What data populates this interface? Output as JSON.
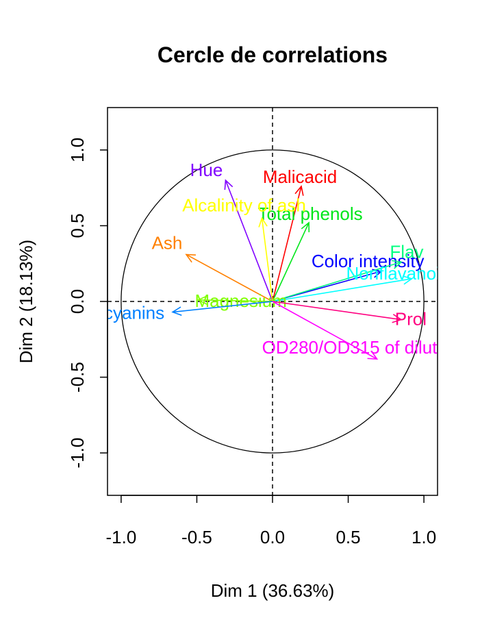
{
  "chart_data": {
    "type": "scatter",
    "title": "Cercle de correlations",
    "xlabel": "Dim 1 (36.63%)",
    "ylabel": "Dim 2 (18.13%)",
    "xlim": [
      -1.09,
      1.09
    ],
    "ylim": [
      -1.28,
      1.28
    ],
    "xticks": [
      -1.0,
      -0.5,
      0.0,
      0.5,
      1.0
    ],
    "yticks": [
      -1.0,
      -0.5,
      0.0,
      0.5,
      1.0
    ],
    "xtick_labels": [
      "-1.0",
      "-0.5",
      "0.0",
      "0.5",
      "1.0"
    ],
    "ytick_labels": [
      "-1.0",
      "-0.5",
      "0.0",
      "0.5",
      "1.0"
    ],
    "unit_circle": true,
    "reference_lines": [
      0,
      0
    ],
    "series": [
      {
        "name": "Malicacid",
        "x": 0.19,
        "y": 0.76,
        "color": "#ff0000"
      },
      {
        "name": "Total phenols",
        "x": 0.24,
        "y": 0.52,
        "color": "#00e61a"
      },
      {
        "name": "Hue",
        "x": -0.31,
        "y": 0.8,
        "color": "#8000ff"
      },
      {
        "name": "Alcalinity of ash",
        "x": -0.07,
        "y": 0.55,
        "color": "#ffff00"
      },
      {
        "name": "Ash",
        "x": -0.57,
        "y": 0.31,
        "color": "#ff8000"
      },
      {
        "name": "Color intensity",
        "x": 0.72,
        "y": 0.2,
        "color": "#0000ff"
      },
      {
        "name": "Flav",
        "x": 0.85,
        "y": 0.26,
        "color": "#00ff80"
      },
      {
        "name": "Nonflavanoid",
        "x": 0.92,
        "y": 0.15,
        "color": "#00ffff"
      },
      {
        "name": "Magnesium",
        "x": -0.49,
        "y": 0.01,
        "color": "#80ff00"
      },
      {
        "name": "cyanins",
        "x": -0.66,
        "y": -0.07,
        "color": "#0080ff"
      },
      {
        "name": "Prol",
        "x": 0.85,
        "y": -0.12,
        "color": "#ff0080"
      },
      {
        "name": "OD280/OD315 of dilut",
        "x": 0.69,
        "y": -0.38,
        "color": "#ff00ff"
      }
    ]
  }
}
